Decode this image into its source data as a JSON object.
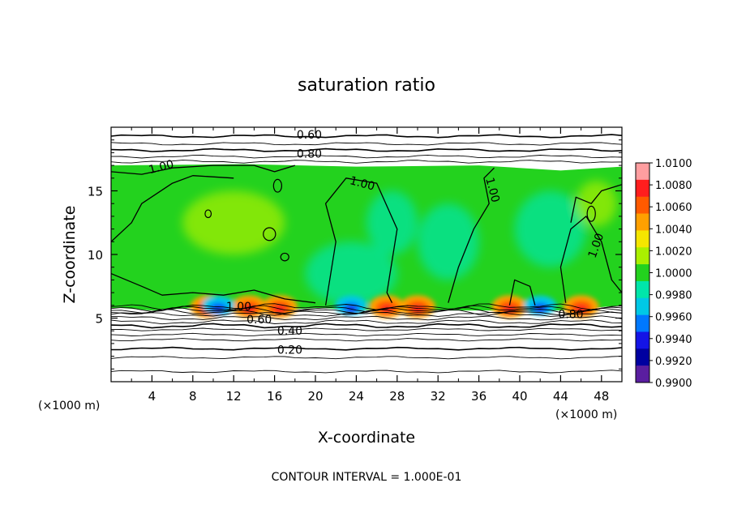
{
  "chart_data": {
    "type": "heatmap",
    "title": "saturation ratio",
    "xlabel": "X-coordinate",
    "ylabel": "Z-coordinate",
    "x_unit_left": "(×1000 m)",
    "x_unit_right": "(×1000 m)",
    "footer": "CONTOUR INTERVAL = 1.000E-01",
    "xlim": [
      0,
      50
    ],
    "ylim": [
      0,
      20
    ],
    "x_ticks": [
      "4",
      "8",
      "12",
      "16",
      "20",
      "24",
      "28",
      "32",
      "36",
      "40",
      "44",
      "48"
    ],
    "y_ticks": [
      "5",
      "10",
      "15"
    ],
    "colorbar_labels": [
      "1.0100",
      "1.0080",
      "1.0060",
      "1.0040",
      "1.0020",
      "1.0000",
      "0.9980",
      "0.9960",
      "0.9940",
      "0.9920",
      "0.9900"
    ],
    "colorbar_colors": [
      "#ff9ea0",
      "#ff1e1e",
      "#ff5a00",
      "#ffa000",
      "#f5e600",
      "#aaf000",
      "#23d21e",
      "#00e6aa",
      "#00c8e6",
      "#0078ff",
      "#1414e6",
      "#0000a0",
      "#5a1ea0"
    ],
    "field_range": [
      0.99,
      1.01
    ],
    "contour_interval": 0.1,
    "contour_labels": [
      "0.60",
      "0.80",
      "1.00",
      "1.00",
      "1.00",
      "1.00",
      "1.00",
      "0.60",
      "0.40",
      "0.20",
      "0.80"
    ],
    "hot_spots_x": [
      9.5,
      13.5,
      16.5,
      27,
      30,
      39,
      46
    ],
    "cold_spots_x": [
      10.5,
      23.5,
      42
    ]
  }
}
